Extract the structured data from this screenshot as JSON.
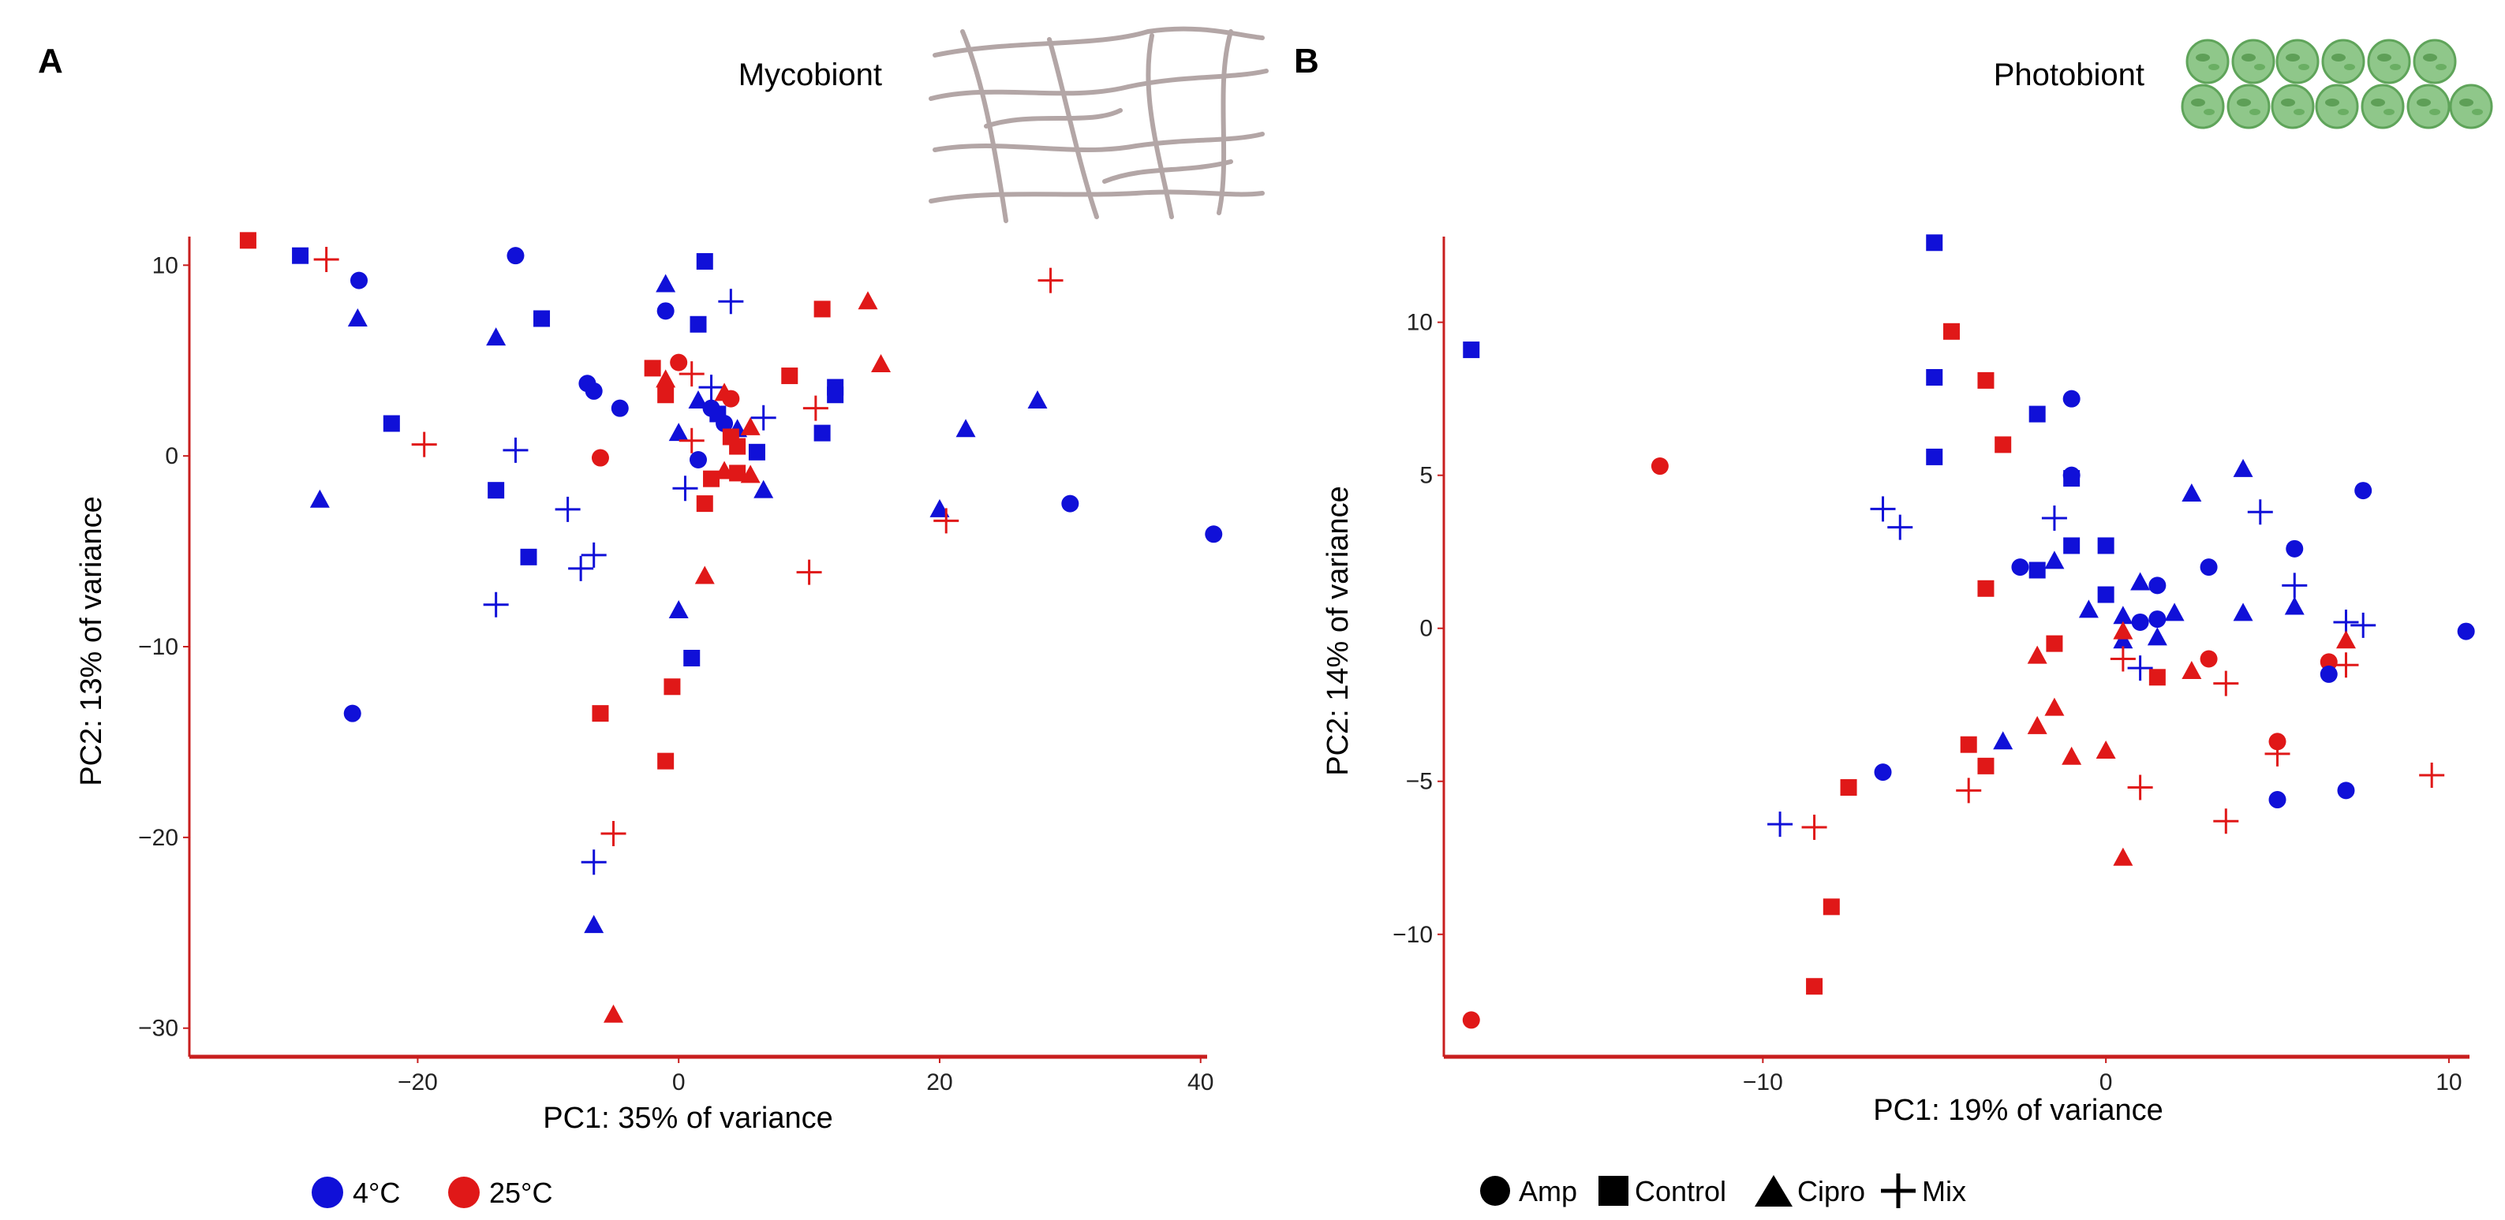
{
  "colors": {
    "cold": "#1010d8",
    "warm": "#e01818",
    "axis": "#c81e1e",
    "text": "#111111"
  },
  "icons": {
    "mycobiont": "fungal-hyphae-icon",
    "photobiont": "algal-cells-icon"
  },
  "legend_temperature": [
    {
      "label": "4°C",
      "color": "#1010d8"
    },
    {
      "label": "25°C",
      "color": "#e01818"
    }
  ],
  "legend_treatment": [
    {
      "label": "Amp",
      "shape": "circle"
    },
    {
      "label": "Control",
      "shape": "square"
    },
    {
      "label": "Cipro",
      "shape": "triangle"
    },
    {
      "label": "Mix",
      "shape": "cross"
    }
  ],
  "chart_data": [
    {
      "type": "scatter",
      "panel_label": "A",
      "title": "Mycobiont",
      "xlabel": "PC1: 35% of variance",
      "ylabel": "PC2: 13% of variance",
      "xlim": [
        -37.5,
        40.5
      ],
      "ylim": [
        -31.5,
        11.5
      ],
      "xticks": [
        -20,
        0,
        20,
        40
      ],
      "yticks": [
        10,
        0,
        -10,
        -20,
        -30
      ],
      "tick_labels_x": [
        "−20",
        "0",
        "20",
        "40"
      ],
      "tick_labels_y": [
        "10",
        "0",
        "−10",
        "−20",
        "−30"
      ],
      "points": [
        {
          "x": -33,
          "y": 11.3,
          "g": "w",
          "s": "square"
        },
        {
          "x": -29,
          "y": 10.5,
          "g": "c",
          "s": "square"
        },
        {
          "x": -27,
          "y": 10.3,
          "g": "w",
          "s": "cross"
        },
        {
          "x": -24.5,
          "y": 9.2,
          "g": "c",
          "s": "circle"
        },
        {
          "x": -24.6,
          "y": 7.2,
          "g": "c",
          "s": "triangle"
        },
        {
          "x": -22,
          "y": 1.7,
          "g": "c",
          "s": "square"
        },
        {
          "x": -27.5,
          "y": -2.3,
          "g": "c",
          "s": "triangle"
        },
        {
          "x": -19.5,
          "y": 0.6,
          "g": "w",
          "s": "cross"
        },
        {
          "x": -25,
          "y": -13.5,
          "g": "c",
          "s": "circle"
        },
        {
          "x": -12.5,
          "y": 10.5,
          "g": "c",
          "s": "circle"
        },
        {
          "x": -14,
          "y": 6.2,
          "g": "c",
          "s": "triangle"
        },
        {
          "x": -10.5,
          "y": 7.2,
          "g": "c",
          "s": "square"
        },
        {
          "x": -12.5,
          "y": 0.3,
          "g": "c",
          "s": "cross"
        },
        {
          "x": -14,
          "y": -1.8,
          "g": "c",
          "s": "square"
        },
        {
          "x": -11.5,
          "y": -5.3,
          "g": "c",
          "s": "square"
        },
        {
          "x": -14,
          "y": -7.8,
          "g": "c",
          "s": "cross"
        },
        {
          "x": -8.5,
          "y": -2.8,
          "g": "c",
          "s": "cross"
        },
        {
          "x": -7.5,
          "y": -5.9,
          "g": "c",
          "s": "cross"
        },
        {
          "x": -6.5,
          "y": -5.2,
          "g": "c",
          "s": "cross"
        },
        {
          "x": -7,
          "y": 3.8,
          "g": "c",
          "s": "circle"
        },
        {
          "x": -6.5,
          "y": 3.4,
          "g": "c",
          "s": "circle"
        },
        {
          "x": -4.5,
          "y": 2.5,
          "g": "c",
          "s": "circle"
        },
        {
          "x": -6,
          "y": -0.1,
          "g": "w",
          "s": "circle"
        },
        {
          "x": -1,
          "y": 9.0,
          "g": "c",
          "s": "triangle"
        },
        {
          "x": 2,
          "y": 10.2,
          "g": "c",
          "s": "square"
        },
        {
          "x": -1,
          "y": 7.6,
          "g": "c",
          "s": "circle"
        },
        {
          "x": 1.5,
          "y": 6.9,
          "g": "c",
          "s": "square"
        },
        {
          "x": 4,
          "y": 8.1,
          "g": "c",
          "s": "cross"
        },
        {
          "x": -2,
          "y": 4.6,
          "g": "w",
          "s": "square"
        },
        {
          "x": 0,
          "y": 4.9,
          "g": "w",
          "s": "circle"
        },
        {
          "x": -1,
          "y": 4.0,
          "g": "w",
          "s": "triangle"
        },
        {
          "x": -1,
          "y": 3.2,
          "g": "w",
          "s": "square"
        },
        {
          "x": 1,
          "y": 4.3,
          "g": "w",
          "s": "cross"
        },
        {
          "x": 2.5,
          "y": 3.6,
          "g": "c",
          "s": "cross"
        },
        {
          "x": 1.5,
          "y": 2.9,
          "g": "c",
          "s": "triangle"
        },
        {
          "x": 2.5,
          "y": 2.5,
          "g": "c",
          "s": "circle"
        },
        {
          "x": 3,
          "y": 2.2,
          "g": "c",
          "s": "square"
        },
        {
          "x": 3.5,
          "y": 3.3,
          "g": "w",
          "s": "triangle"
        },
        {
          "x": 4,
          "y": 3.0,
          "g": "w",
          "s": "circle"
        },
        {
          "x": 3.5,
          "y": 1.7,
          "g": "c",
          "s": "circle"
        },
        {
          "x": 4.5,
          "y": 1.4,
          "g": "c",
          "s": "triangle"
        },
        {
          "x": 4,
          "y": 1.0,
          "g": "w",
          "s": "square"
        },
        {
          "x": 4.5,
          "y": 0.5,
          "g": "w",
          "s": "square"
        },
        {
          "x": 5.5,
          "y": 1.5,
          "g": "w",
          "s": "triangle"
        },
        {
          "x": 6,
          "y": 0.2,
          "g": "c",
          "s": "square"
        },
        {
          "x": 6.5,
          "y": 2.0,
          "g": "c",
          "s": "cross"
        },
        {
          "x": 0,
          "y": 1.2,
          "g": "c",
          "s": "triangle"
        },
        {
          "x": 1,
          "y": 0.8,
          "g": "w",
          "s": "cross"
        },
        {
          "x": 1.5,
          "y": -0.2,
          "g": "c",
          "s": "circle"
        },
        {
          "x": 0.5,
          "y": -1.7,
          "g": "c",
          "s": "cross"
        },
        {
          "x": 2.5,
          "y": -1.2,
          "g": "w",
          "s": "square"
        },
        {
          "x": 3.5,
          "y": -0.8,
          "g": "w",
          "s": "triangle"
        },
        {
          "x": 4.5,
          "y": -0.9,
          "g": "w",
          "s": "square"
        },
        {
          "x": 5.5,
          "y": -1.0,
          "g": "w",
          "s": "triangle"
        },
        {
          "x": 6.5,
          "y": -1.8,
          "g": "c",
          "s": "triangle"
        },
        {
          "x": 2,
          "y": -2.5,
          "g": "w",
          "s": "square"
        },
        {
          "x": 8.5,
          "y": 4.2,
          "g": "w",
          "s": "square"
        },
        {
          "x": 11,
          "y": 7.7,
          "g": "w",
          "s": "square"
        },
        {
          "x": 14.5,
          "y": 8.1,
          "g": "w",
          "s": "triangle"
        },
        {
          "x": 12,
          "y": 3.6,
          "g": "c",
          "s": "square"
        },
        {
          "x": 12,
          "y": 3.2,
          "g": "c",
          "s": "square"
        },
        {
          "x": 11,
          "y": 1.2,
          "g": "c",
          "s": "square"
        },
        {
          "x": 10.5,
          "y": 2.5,
          "g": "w",
          "s": "cross"
        },
        {
          "x": 15.5,
          "y": 4.8,
          "g": "w",
          "s": "triangle"
        },
        {
          "x": 2,
          "y": -6.3,
          "g": "w",
          "s": "triangle"
        },
        {
          "x": 10,
          "y": -6.1,
          "g": "w",
          "s": "cross"
        },
        {
          "x": 0,
          "y": -8.1,
          "g": "c",
          "s": "triangle"
        },
        {
          "x": 1,
          "y": -10.6,
          "g": "c",
          "s": "square"
        },
        {
          "x": -0.5,
          "y": -12.1,
          "g": "w",
          "s": "square"
        },
        {
          "x": -1,
          "y": -16.0,
          "g": "w",
          "s": "square"
        },
        {
          "x": -6,
          "y": -13.5,
          "g": "w",
          "s": "square"
        },
        {
          "x": -5,
          "y": -19.8,
          "g": "w",
          "s": "cross"
        },
        {
          "x": -6.5,
          "y": -21.3,
          "g": "c",
          "s": "cross"
        },
        {
          "x": -6.5,
          "y": -24.6,
          "g": "c",
          "s": "triangle"
        },
        {
          "x": -5,
          "y": -29.3,
          "g": "w",
          "s": "triangle"
        },
        {
          "x": 20,
          "y": -2.8,
          "g": "c",
          "s": "triangle"
        },
        {
          "x": 20.5,
          "y": -3.4,
          "g": "w",
          "s": "cross"
        },
        {
          "x": 22,
          "y": 1.4,
          "g": "c",
          "s": "triangle"
        },
        {
          "x": 27.5,
          "y": 2.9,
          "g": "c",
          "s": "triangle"
        },
        {
          "x": 28.5,
          "y": 9.2,
          "g": "w",
          "s": "cross"
        },
        {
          "x": 30,
          "y": -2.5,
          "g": "c",
          "s": "circle"
        },
        {
          "x": 41,
          "y": -4.1,
          "g": "c",
          "s": "circle"
        }
      ]
    },
    {
      "type": "scatter",
      "panel_label": "B",
      "title": "Photobiont",
      "xlabel": "PC1: 19% of variance",
      "ylabel": "PC2: 14% of variance",
      "xlim": [
        -19.3,
        10.6
      ],
      "ylim": [
        -14,
        12.8
      ],
      "xticks": [
        -10,
        0,
        10
      ],
      "yticks": [
        10,
        5,
        0,
        -5,
        -10
      ],
      "tick_labels_x": [
        "−10",
        "0",
        "10"
      ],
      "tick_labels_y": [
        "10",
        "5",
        "0",
        "−5",
        "−10"
      ],
      "points": [
        {
          "x": -18.5,
          "y": 9.1,
          "g": "c",
          "s": "square"
        },
        {
          "x": -13,
          "y": 5.3,
          "g": "w",
          "s": "circle"
        },
        {
          "x": -18.5,
          "y": -12.8,
          "g": "w",
          "s": "circle"
        },
        {
          "x": -6.5,
          "y": 3.9,
          "g": "c",
          "s": "cross"
        },
        {
          "x": -6,
          "y": 3.3,
          "g": "c",
          "s": "cross"
        },
        {
          "x": -5,
          "y": 12.6,
          "g": "c",
          "s": "square"
        },
        {
          "x": -5,
          "y": 8.2,
          "g": "c",
          "s": "square"
        },
        {
          "x": -5,
          "y": 5.6,
          "g": "c",
          "s": "square"
        },
        {
          "x": -4.5,
          "y": 9.7,
          "g": "w",
          "s": "square"
        },
        {
          "x": -3.5,
          "y": 8.1,
          "g": "w",
          "s": "square"
        },
        {
          "x": -3,
          "y": 6.0,
          "g": "w",
          "s": "square"
        },
        {
          "x": -2,
          "y": 7.0,
          "g": "c",
          "s": "square"
        },
        {
          "x": -1,
          "y": 7.5,
          "g": "c",
          "s": "circle"
        },
        {
          "x": -1,
          "y": 4.9,
          "g": "c",
          "s": "square"
        },
        {
          "x": -1,
          "y": 5.0,
          "g": "c",
          "s": "circle"
        },
        {
          "x": -1.5,
          "y": 3.6,
          "g": "c",
          "s": "cross"
        },
        {
          "x": -3.5,
          "y": 1.3,
          "g": "w",
          "s": "square"
        },
        {
          "x": -2.5,
          "y": 2.0,
          "g": "c",
          "s": "circle"
        },
        {
          "x": -2,
          "y": 1.9,
          "g": "c",
          "s": "square"
        },
        {
          "x": -1.5,
          "y": 2.2,
          "g": "c",
          "s": "triangle"
        },
        {
          "x": -1,
          "y": 2.7,
          "g": "c",
          "s": "square"
        },
        {
          "x": -0.5,
          "y": 0.6,
          "g": "c",
          "s": "triangle"
        },
        {
          "x": 0,
          "y": 1.1,
          "g": "c",
          "s": "square"
        },
        {
          "x": 0,
          "y": 2.7,
          "g": "c",
          "s": "square"
        },
        {
          "x": 0.5,
          "y": 0.4,
          "g": "c",
          "s": "triangle"
        },
        {
          "x": 1,
          "y": 0.2,
          "g": "c",
          "s": "circle"
        },
        {
          "x": 1,
          "y": 1.5,
          "g": "c",
          "s": "triangle"
        },
        {
          "x": 1.5,
          "y": 1.4,
          "g": "c",
          "s": "circle"
        },
        {
          "x": 1.5,
          "y": 0.3,
          "g": "c",
          "s": "circle"
        },
        {
          "x": 2,
          "y": 0.5,
          "g": "c",
          "s": "triangle"
        },
        {
          "x": 1.5,
          "y": -0.3,
          "g": "c",
          "s": "triangle"
        },
        {
          "x": 0.5,
          "y": -0.4,
          "g": "c",
          "s": "triangle"
        },
        {
          "x": 2.5,
          "y": 4.4,
          "g": "c",
          "s": "triangle"
        },
        {
          "x": 3,
          "y": 2.0,
          "g": "c",
          "s": "circle"
        },
        {
          "x": 4,
          "y": 5.2,
          "g": "c",
          "s": "triangle"
        },
        {
          "x": 4,
          "y": 0.5,
          "g": "c",
          "s": "triangle"
        },
        {
          "x": 4.5,
          "y": 3.8,
          "g": "c",
          "s": "cross"
        },
        {
          "x": 5.5,
          "y": 2.6,
          "g": "c",
          "s": "circle"
        },
        {
          "x": 5.5,
          "y": 1.4,
          "g": "c",
          "s": "cross"
        },
        {
          "x": 5.5,
          "y": 0.7,
          "g": "c",
          "s": "triangle"
        },
        {
          "x": 7.5,
          "y": 4.5,
          "g": "c",
          "s": "circle"
        },
        {
          "x": 10.5,
          "y": -0.1,
          "g": "c",
          "s": "circle"
        },
        {
          "x": 7,
          "y": 0.2,
          "g": "c",
          "s": "cross"
        },
        {
          "x": 7.5,
          "y": 0.1,
          "g": "c",
          "s": "cross"
        },
        {
          "x": 7,
          "y": -0.4,
          "g": "w",
          "s": "triangle"
        },
        {
          "x": 6.5,
          "y": -1.1,
          "g": "w",
          "s": "circle"
        },
        {
          "x": 7,
          "y": -1.2,
          "g": "w",
          "s": "cross"
        },
        {
          "x": 6.5,
          "y": -1.5,
          "g": "c",
          "s": "circle"
        },
        {
          "x": 1,
          "y": -1.3,
          "g": "c",
          "s": "cross"
        },
        {
          "x": -2,
          "y": -0.9,
          "g": "w",
          "s": "triangle"
        },
        {
          "x": -1.5,
          "y": -0.5,
          "g": "w",
          "s": "square"
        },
        {
          "x": 0.5,
          "y": -0.1,
          "g": "w",
          "s": "triangle"
        },
        {
          "x": 0.5,
          "y": -1.0,
          "g": "w",
          "s": "cross"
        },
        {
          "x": 1.5,
          "y": -1.6,
          "g": "w",
          "s": "square"
        },
        {
          "x": 2.5,
          "y": -1.4,
          "g": "w",
          "s": "triangle"
        },
        {
          "x": 3,
          "y": -1.0,
          "g": "w",
          "s": "circle"
        },
        {
          "x": 3.5,
          "y": -1.8,
          "g": "w",
          "s": "cross"
        },
        {
          "x": -1.5,
          "y": -2.6,
          "g": "w",
          "s": "triangle"
        },
        {
          "x": -2,
          "y": -3.2,
          "g": "w",
          "s": "triangle"
        },
        {
          "x": -1,
          "y": -4.2,
          "g": "w",
          "s": "triangle"
        },
        {
          "x": 0,
          "y": -4.0,
          "g": "w",
          "s": "triangle"
        },
        {
          "x": -3,
          "y": -3.7,
          "g": "c",
          "s": "triangle"
        },
        {
          "x": -4,
          "y": -3.8,
          "g": "w",
          "s": "square"
        },
        {
          "x": -3.5,
          "y": -4.5,
          "g": "w",
          "s": "square"
        },
        {
          "x": -4,
          "y": -5.3,
          "g": "w",
          "s": "cross"
        },
        {
          "x": 1,
          "y": -5.2,
          "g": "w",
          "s": "cross"
        },
        {
          "x": 3.5,
          "y": -6.3,
          "g": "w",
          "s": "cross"
        },
        {
          "x": 5,
          "y": -3.7,
          "g": "w",
          "s": "circle"
        },
        {
          "x": 5,
          "y": -4.1,
          "g": "w",
          "s": "cross"
        },
        {
          "x": 5,
          "y": -5.6,
          "g": "c",
          "s": "circle"
        },
        {
          "x": 7,
          "y": -5.3,
          "g": "c",
          "s": "circle"
        },
        {
          "x": 9.5,
          "y": -4.8,
          "g": "w",
          "s": "cross"
        },
        {
          "x": 0.5,
          "y": -7.5,
          "g": "w",
          "s": "triangle"
        },
        {
          "x": -6.5,
          "y": -4.7,
          "g": "c",
          "s": "circle"
        },
        {
          "x": -7.5,
          "y": -5.2,
          "g": "w",
          "s": "square"
        },
        {
          "x": -8,
          "y": -9.1,
          "g": "w",
          "s": "square"
        },
        {
          "x": -8.5,
          "y": -6.5,
          "g": "w",
          "s": "cross"
        },
        {
          "x": -9.5,
          "y": -6.4,
          "g": "c",
          "s": "cross"
        },
        {
          "x": -8.5,
          "y": -11.7,
          "g": "w",
          "s": "square"
        }
      ]
    }
  ]
}
